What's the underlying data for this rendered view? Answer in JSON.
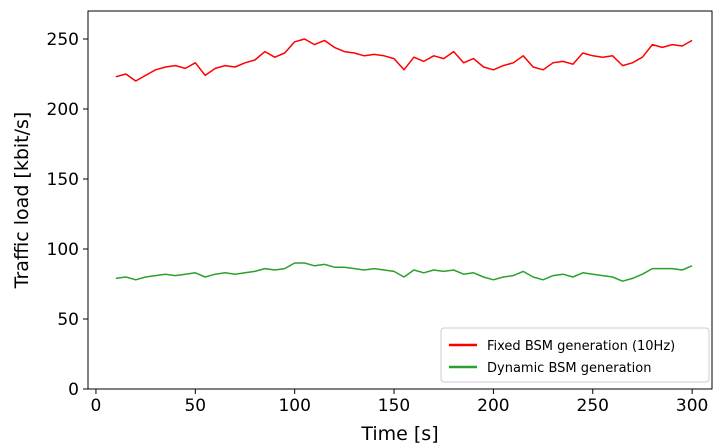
{
  "chart_data": {
    "type": "line",
    "title": "",
    "xlabel": "Time [s]",
    "ylabel": "Traffic load [kbit/s]",
    "xlim": [
      -4,
      310
    ],
    "ylim": [
      0,
      270
    ],
    "xticks": [
      0,
      50,
      100,
      150,
      200,
      250,
      300
    ],
    "yticks": [
      0,
      50,
      100,
      150,
      200,
      250
    ],
    "grid": false,
    "legend_position": "lower-right",
    "x": [
      10,
      15,
      20,
      25,
      30,
      35,
      40,
      45,
      50,
      55,
      60,
      65,
      70,
      75,
      80,
      85,
      90,
      95,
      100,
      105,
      110,
      115,
      120,
      125,
      130,
      135,
      140,
      145,
      150,
      155,
      160,
      165,
      170,
      175,
      180,
      185,
      190,
      195,
      200,
      205,
      210,
      215,
      220,
      225,
      230,
      235,
      240,
      245,
      250,
      255,
      260,
      265,
      270,
      275,
      280,
      285,
      290,
      295,
      300
    ],
    "series": [
      {
        "name": "Fixed BSM generation (10Hz)",
        "color": "#ff0000",
        "values": [
          223,
          225,
          220,
          224,
          228,
          230,
          231,
          229,
          233,
          224,
          229,
          231,
          230,
          233,
          235,
          241,
          237,
          240,
          248,
          250,
          246,
          249,
          244,
          241,
          240,
          238,
          239,
          238,
          236,
          228,
          237,
          234,
          238,
          236,
          241,
          233,
          236,
          230,
          228,
          231,
          233,
          238,
          230,
          228,
          233,
          234,
          232,
          240,
          238,
          237,
          238,
          231,
          233,
          237,
          246,
          244,
          246,
          245,
          249
        ]
      },
      {
        "name": "Dynamic BSM generation",
        "color": "#2ca02c",
        "values": [
          79,
          80,
          78,
          80,
          81,
          82,
          81,
          82,
          83,
          80,
          82,
          83,
          82,
          83,
          84,
          86,
          85,
          86,
          90,
          90,
          88,
          89,
          87,
          87,
          86,
          85,
          86,
          85,
          84,
          80,
          85,
          83,
          85,
          84,
          85,
          82,
          83,
          80,
          78,
          80,
          81,
          84,
          80,
          78,
          81,
          82,
          80,
          83,
          82,
          81,
          80,
          77,
          79,
          82,
          86,
          86,
          86,
          85,
          88
        ]
      }
    ]
  }
}
